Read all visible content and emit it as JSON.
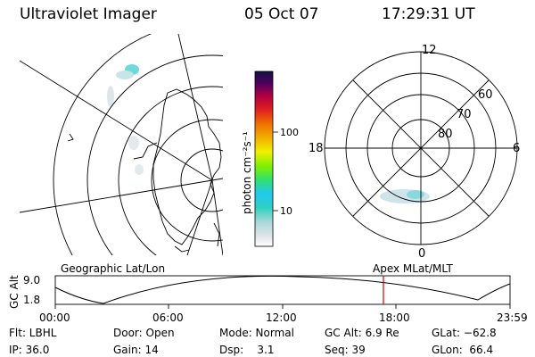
{
  "header": {
    "title": "Ultraviolet Imager",
    "date": "05 Oct 07",
    "time": "17:29:31 UT"
  },
  "colorbar": {
    "label": "photon cm⁻²s⁻¹",
    "ticks": [
      "100",
      "10"
    ]
  },
  "polar_plot": {
    "mlt_labels": {
      "top": "12",
      "left": "18",
      "right": "6",
      "bottom": "0"
    },
    "lat_labels": [
      "60",
      "70",
      "80"
    ]
  },
  "timeline": {
    "y_label": "GC Alt",
    "y_ticks": [
      "9.0",
      "1.8"
    ],
    "left_title": "Geographic Lat/Lon",
    "right_title": "Apex MLat/MLT",
    "x_ticks": [
      "00:00",
      "06:00",
      "12:00",
      "18:00",
      "23:59"
    ],
    "marker_color": "#d00000"
  },
  "info": {
    "row1": [
      {
        "key": "filter",
        "text": "Flt: LBHL"
      },
      {
        "key": "door",
        "text": "Door: Open"
      },
      {
        "key": "mode",
        "text": "Mode: Normal"
      },
      {
        "key": "gcalt",
        "text": "GC Alt: 6.9 Re"
      },
      {
        "key": "glat",
        "text": "GLat: −62.8"
      }
    ],
    "row2": [
      {
        "key": "ip",
        "text": "IP: 36.0"
      },
      {
        "key": "gain",
        "text": "Gain: 14"
      },
      {
        "key": "dsp",
        "text": "Dsp:    3.1"
      },
      {
        "key": "seq",
        "text": "Seq: 39"
      },
      {
        "key": "glon",
        "text": "GLon:  66.4"
      }
    ]
  }
}
